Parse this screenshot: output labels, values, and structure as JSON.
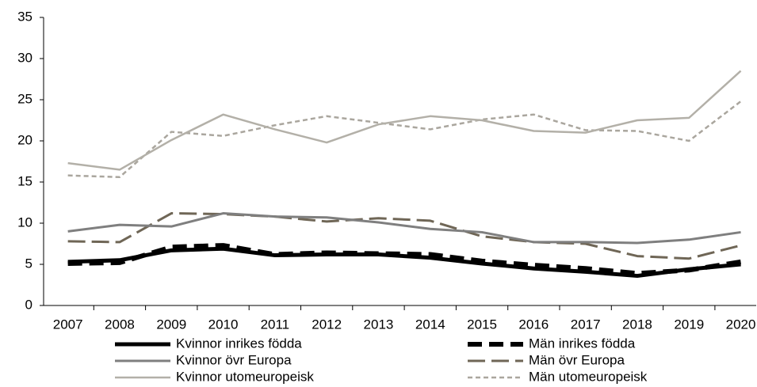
{
  "chart_data": {
    "type": "line",
    "categories": [
      "2007",
      "2008",
      "2009",
      "2010",
      "2011",
      "2012",
      "2013",
      "2014",
      "2015",
      "2016",
      "2017",
      "2018",
      "2019",
      "2020"
    ],
    "ylim": [
      0,
      35
    ],
    "yticks": [
      0,
      5,
      10,
      15,
      20,
      25,
      30,
      35
    ],
    "grid": false,
    "legend": "bottom",
    "series": [
      {
        "name": "Kvinnor inrikes födda",
        "color": "#000000",
        "width": 5,
        "dash": "solid",
        "values": [
          5.3,
          5.5,
          6.7,
          6.9,
          6.1,
          6.2,
          6.2,
          5.8,
          5.1,
          4.5,
          4.1,
          3.6,
          4.4,
          5.0
        ]
      },
      {
        "name": "Män inrikes födda",
        "color": "#000000",
        "width": 6,
        "dash": "dashed",
        "values": [
          5.1,
          5.2,
          7.1,
          7.3,
          6.2,
          6.4,
          6.3,
          6.2,
          5.4,
          4.9,
          4.5,
          3.9,
          4.3,
          5.3
        ]
      },
      {
        "name": "Kvinnor övr Europa",
        "color": "#7f7f7f",
        "width": 3,
        "dash": "solid",
        "values": [
          9.0,
          9.8,
          9.6,
          11.2,
          10.8,
          10.7,
          10.1,
          9.3,
          8.9,
          7.7,
          7.7,
          7.6,
          8.0,
          8.9
        ]
      },
      {
        "name": "Män övr Europa",
        "color": "#6f6656",
        "width": 3,
        "dash": "dashed",
        "values": [
          7.8,
          7.7,
          11.2,
          11.1,
          10.8,
          10.2,
          10.6,
          10.3,
          8.4,
          7.7,
          7.5,
          6.0,
          5.7,
          7.3
        ]
      },
      {
        "name": "Kvinnor utomeuropeisk",
        "color": "#b3b0a8",
        "width": 2.5,
        "dash": "solid",
        "values": [
          17.3,
          16.5,
          20.1,
          23.2,
          21.4,
          19.8,
          22.0,
          23.0,
          22.5,
          21.2,
          21.0,
          22.5,
          22.8,
          28.5
        ]
      },
      {
        "name": "Män utomeuropeisk",
        "color": "#aaa69e",
        "width": 2.5,
        "dash": "dotted",
        "values": [
          15.8,
          15.6,
          21.1,
          20.6,
          21.9,
          23.0,
          22.2,
          21.4,
          22.6,
          23.2,
          21.3,
          21.2,
          20.0,
          24.8
        ]
      }
    ]
  }
}
